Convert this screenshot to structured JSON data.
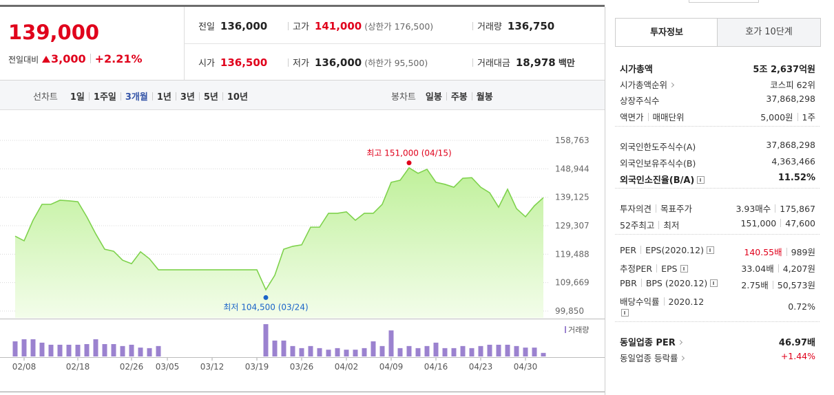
{
  "quote": {
    "price": "139,000",
    "change_label": "전일대비",
    "change": "3,000",
    "change_rate": "+2.21%"
  },
  "stats": [
    {
      "label": "전일",
      "value": "136,000"
    },
    {
      "label": "고가",
      "value": "141,000",
      "note": "(상한가 176,500)"
    },
    {
      "label": "거래량",
      "value": "136,750"
    },
    {
      "label": "시가",
      "value": "136,500"
    },
    {
      "label": "저가",
      "value": "136,000",
      "note": "(하한가 95,500)"
    },
    {
      "label": "거래대금",
      "value": "18,978",
      "unit": "백만"
    }
  ],
  "chart_tabs": {
    "line_label": "선차트",
    "periods": [
      "1일",
      "1주일",
      "3개월",
      "1년",
      "3년",
      "5년",
      "10년"
    ],
    "candle_label": "봉차트",
    "candles": [
      "일봉",
      "주봉",
      "월봉"
    ]
  },
  "chart_data": [
    {
      "type": "area",
      "color": "#7ed24c",
      "categories": [
        null,
        "02/08",
        null,
        null,
        null,
        null,
        null,
        "02/18",
        null,
        null,
        null,
        null,
        null,
        "02/26",
        null,
        null,
        null,
        "03/05",
        null,
        null,
        null,
        null,
        "03/12",
        null,
        null,
        null,
        null,
        "03/19",
        null,
        null,
        null,
        null,
        "03/26",
        null,
        null,
        null,
        null,
        "04/02",
        null,
        null,
        null,
        null,
        "04/09",
        null,
        null,
        null,
        null,
        "04/16",
        null,
        null,
        null,
        null,
        "04/23",
        null,
        null,
        null,
        null,
        "04/30",
        null,
        null
      ],
      "values": [
        125700,
        124100,
        131200,
        136700,
        136700,
        138100,
        137900,
        137600,
        132400,
        126500,
        121200,
        120500,
        117400,
        116200,
        120300,
        117900,
        114100,
        114100,
        114100,
        114100,
        114100,
        114100,
        114100,
        114100,
        114100,
        114100,
        114100,
        114100,
        107200,
        112200,
        121200,
        122200,
        122700,
        128800,
        128800,
        133600,
        133600,
        134100,
        131200,
        133600,
        133600,
        136700,
        144300,
        145000,
        149300,
        147400,
        148800,
        144300,
        143600,
        142600,
        145700,
        145900,
        142600,
        140700,
        135700,
        141900,
        135200,
        132400,
        136200,
        139000
      ],
      "ylim": [
        97475,
        162090
      ],
      "yticks": [
        {
          "value": 99850,
          "label": "99,850"
        },
        {
          "value": 109669,
          "label": "109,669"
        },
        {
          "value": 119488,
          "label": "119,488"
        },
        {
          "value": 129307,
          "label": "129,307"
        },
        {
          "value": 139125,
          "label": "139,125"
        },
        {
          "value": 148944,
          "label": "148,944"
        },
        {
          "value": 158763,
          "label": "158,763"
        }
      ],
      "grid": true,
      "annotations": [
        {
          "label": "최고 151,000 (04/15)",
          "value": 151000,
          "color": "#e0001b"
        },
        {
          "label": "최저 104,500 (03/24)",
          "value": 104500,
          "color": "#1a64c8"
        }
      ]
    },
    {
      "type": "bar",
      "ylim": [
        0,
        1400000
      ],
      "series": [
        {
          "name": "거래량",
          "color": "#9b82cf",
          "values": [
            580000,
            660000,
            660000,
            530000,
            450000,
            450000,
            450000,
            450000,
            475000,
            660000,
            475000,
            475000,
            400000,
            450000,
            340000,
            320000,
            400000,
            0,
            0,
            0,
            0,
            0,
            0,
            0,
            0,
            0,
            0,
            0,
            1240000,
            610000,
            610000,
            400000,
            320000,
            400000,
            320000,
            260000,
            320000,
            260000,
            260000,
            320000,
            580000,
            400000,
            1000000,
            320000,
            400000,
            320000,
            400000,
            530000,
            320000,
            320000,
            400000,
            320000,
            400000,
            450000,
            450000,
            450000,
            400000,
            340000,
            340000,
            136750
          ]
        }
      ]
    }
  ],
  "info_tabs": [
    "투자정보",
    "호가 10단계"
  ],
  "info_sections": [
    [
      {
        "label": [
          "시가총액"
        ],
        "value": [
          "5조 2,637억원"
        ]
      },
      {
        "label": [
          "시가총액순위"
        ],
        "value": [
          "코스피 62위"
        ]
      },
      {
        "label": [
          "상장주식수"
        ],
        "value": [
          "37,868,298"
        ]
      },
      {
        "label": [
          "액면가",
          "매매단위"
        ],
        "value": [
          "5,000원",
          "1주"
        ]
      }
    ],
    [
      {
        "label": [
          "외국인한도주식수(A)"
        ],
        "value": [
          "37,868,298"
        ]
      },
      {
        "label": [
          "외국인보유주식수(B)"
        ],
        "value": [
          "4,363,466"
        ]
      },
      {
        "label": [
          "외국인소진율(B/A)"
        ],
        "value": [
          "11.52%"
        ]
      }
    ],
    [
      {
        "label": [
          "투자의견",
          "목표주가"
        ],
        "value": [
          "3.93매수",
          "175,867"
        ]
      },
      {
        "label": [
          "52주최고",
          "최저"
        ],
        "value": [
          "151,000",
          "47,600"
        ]
      }
    ],
    [
      {
        "label": [
          "PER",
          "EPS(2020.12)"
        ],
        "value": [
          "140.55배",
          "989원"
        ]
      },
      {
        "label": [
          "추정PER",
          "EPS"
        ],
        "value": [
          "33.04배",
          "4,207원"
        ]
      },
      {
        "label": [
          "PBR",
          "BPS (2020.12)"
        ],
        "value": [
          "2.75배",
          "50,573원"
        ]
      },
      {
        "label": [
          "배당수익률",
          "2020.12"
        ],
        "value": [
          "0.72%"
        ]
      }
    ],
    [
      {
        "label": [
          "동일업종 PER"
        ],
        "value": [
          "46.97배"
        ]
      },
      {
        "label": [
          "동일업종 등락률"
        ],
        "value": [
          "+1.44%"
        ]
      }
    ]
  ]
}
